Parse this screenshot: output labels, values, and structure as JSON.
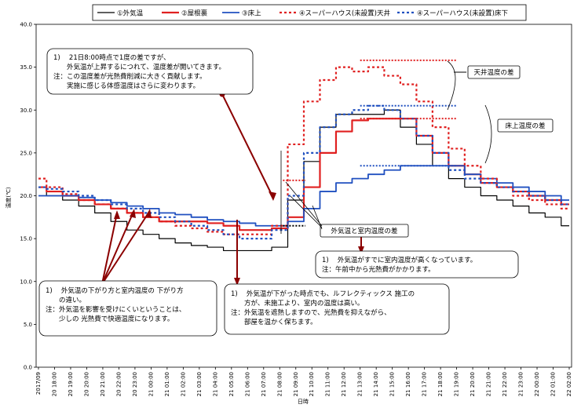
{
  "chart_data": {
    "type": "line",
    "ylabel": "温度(℃)",
    "xlabel": "日時",
    "ylim": [
      0,
      40
    ],
    "y_ticks": [
      "0.0",
      "5.0",
      "10.0",
      "15.0",
      "20.0",
      "25.0",
      "30.0",
      "35.0",
      "40.0"
    ],
    "grid": false,
    "legend_position": "top",
    "x_ticks": [
      "2017/09",
      "20 18:00",
      "20 19:00",
      "20 20:00",
      "20 21:00",
      "20 22:00",
      "20 23:00",
      "21 00:00",
      "21 01:00",
      "21 02:00",
      "21 03:00",
      "21 04:00",
      "21 05:00",
      "21 06:00",
      "21 07:00",
      "21 08:00",
      "21 09:00",
      "21 10:00",
      "21 11:00",
      "21 12:00",
      "21 13:00",
      "21 14:00",
      "21 15:00",
      "21 16:00",
      "21 17:00",
      "21 18:00",
      "21 19:00",
      "21 20:00",
      "21 21:00",
      "21 22:00",
      "21 23:00",
      "22 00:00",
      "22 01:00",
      "22 02:00"
    ],
    "series": [
      {
        "name": "①外気温",
        "color": "#000000",
        "style": "solid",
        "width": 1.2,
        "values": [
          21.0,
          20.0,
          19.5,
          18.8,
          18.0,
          17.0,
          16.0,
          15.5,
          15.0,
          14.5,
          14.2,
          14.0,
          13.6,
          13.6,
          13.6,
          14.0,
          19.5,
          24.0,
          28.0,
          29.5,
          29.5,
          29.5,
          30.0,
          28.0,
          26.0,
          23.5,
          22.0,
          21.0,
          20.0,
          19.5,
          18.8,
          18.0,
          17.5,
          16.5
        ]
      },
      {
        "name": "②屋根裏",
        "color": "#e02020",
        "style": "solid",
        "width": 2.2,
        "values": [
          21.0,
          20.5,
          20.0,
          19.5,
          19.0,
          18.5,
          18.0,
          17.5,
          17.0,
          17.0,
          17.0,
          16.8,
          16.5,
          16.0,
          16.0,
          16.2,
          17.5,
          21.0,
          25.0,
          27.5,
          28.8,
          29.0,
          29.0,
          29.0,
          27.0,
          25.0,
          23.5,
          22.5,
          21.5,
          21.0,
          20.5,
          20.0,
          19.5,
          19.0
        ]
      },
      {
        "name": "③床上",
        "color": "#2050c0",
        "style": "solid",
        "width": 1.8,
        "values": [
          20.0,
          20.0,
          20.0,
          19.8,
          19.5,
          19.2,
          18.8,
          18.5,
          18.0,
          17.8,
          17.5,
          17.2,
          17.0,
          16.8,
          16.5,
          16.5,
          17.0,
          18.5,
          20.5,
          21.5,
          22.0,
          22.5,
          23.0,
          23.5,
          23.5,
          23.5,
          23.5,
          22.5,
          22.0,
          21.5,
          21.0,
          20.5,
          20.0,
          19.5
        ]
      },
      {
        "name": "④スーパーハウス(未設置)天井",
        "color": "#e02020",
        "style": "dotted",
        "width": 2.2,
        "values": [
          22.0,
          21.0,
          20.2,
          19.5,
          19.0,
          18.5,
          18.0,
          17.5,
          17.0,
          16.5,
          16.2,
          15.8,
          15.5,
          15.5,
          15.5,
          16.5,
          26.0,
          31.0,
          33.5,
          35.0,
          34.5,
          35.0,
          34.0,
          33.0,
          31.0,
          28.0,
          25.5,
          23.5,
          22.0,
          21.0,
          20.0,
          19.5,
          19.0,
          18.5
        ]
      },
      {
        "name": "④スーパーハウス(未設置)床下",
        "color": "#2050c0",
        "style": "dotted",
        "width": 2.2,
        "values": [
          21.0,
          20.8,
          20.5,
          20.0,
          19.5,
          19.0,
          18.5,
          18.0,
          17.5,
          17.0,
          16.5,
          16.0,
          15.5,
          15.0,
          15.0,
          16.0,
          20.0,
          25.0,
          28.0,
          29.5,
          30.0,
          30.5,
          30.0,
          29.0,
          27.0,
          25.0,
          23.0,
          22.0,
          21.5,
          21.0,
          20.5,
          20.0,
          19.5,
          19.0
        ]
      }
    ],
    "brackets": [
      {
        "from": 20,
        "to": 34,
        "y": 35.8,
        "color": "#e02020"
      },
      {
        "from": 20,
        "to": 34,
        "y": 30.5,
        "color": "#2050c0"
      },
      {
        "from": 20,
        "to": 34,
        "y": 29.0,
        "color": "#e02020"
      },
      {
        "from": 20,
        "to": 34,
        "y": 23.5,
        "color": "#2050c0"
      },
      {
        "from": 15.2,
        "to": 16.6,
        "y": 21.8,
        "color": "#e02020"
      },
      {
        "from": 15.2,
        "to": 16.6,
        "y": 16.5,
        "color": "#000000"
      }
    ]
  },
  "annotations": {
    "note1": {
      "line1": "1)　 21日8:00時点で1度の差ですが、",
      "line2": "　　外気温が上昇するにつれて、温度差が開いてきます。",
      "line3": "注：この温度差が光熱費削減に大きく貢献します。",
      "line4": "　　実施に感じる体感温度はさらに変わります。"
    },
    "note2": {
      "line1": "1)　 外気温が下がった時点でも、ルフレクティックス 施工の",
      "line2": "　　方が、未施工より、室内の温度は高い。",
      "line3": "注：外気温を遮熱しますので、光熱費を抑えながら、",
      "line4": "　　部屋を温かく保ちます。"
    },
    "note3": {
      "line1": "1)　 外気温の下がり方と室内温度の 下がり方",
      "line2": "　　の違い。",
      "line3": "注：外気温を影響を受けにくいということは、",
      "line4": "　　少しの 光熱費で快適温度になります。"
    },
    "note4": {
      "line1": "1)　 外気温がすでに室内温度が高くなっています。",
      "line2": "注：午前中から光熱費がかかります。"
    },
    "label_ceiling_diff": "天井温度の差",
    "label_floor_diff": "床上温度の差",
    "label_outdoor_diff": "外気温と室内温度の差"
  }
}
